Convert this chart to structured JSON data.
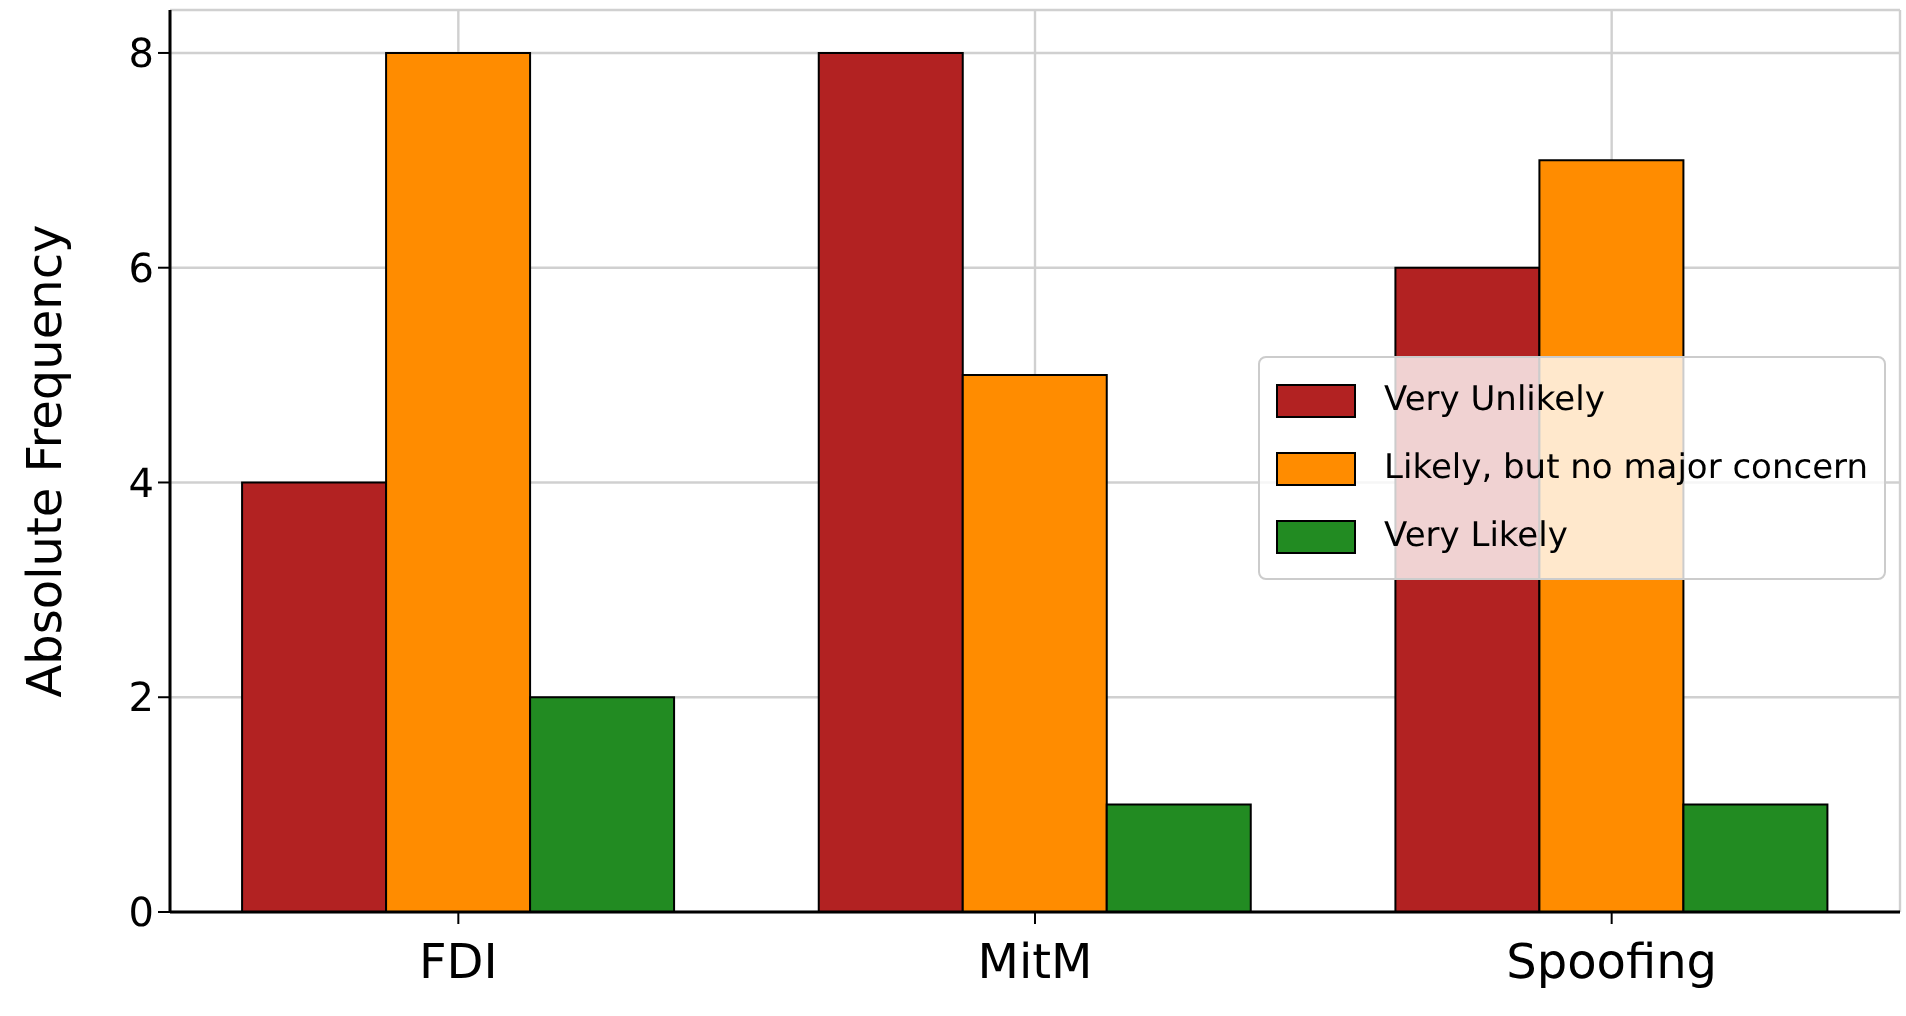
{
  "chart_data": {
    "type": "bar",
    "ylabel": "Absolute Frequency",
    "categories": [
      "FDI",
      "MitM",
      "Spoofing"
    ],
    "series": [
      {
        "name": "Very Unlikely",
        "color": "#b22222",
        "values": [
          4,
          8,
          6
        ]
      },
      {
        "name": "Likely, but no major concern",
        "color": "#ff8c00",
        "values": [
          8,
          5,
          7
        ]
      },
      {
        "name": "Very Likely",
        "color": "#228b22",
        "values": [
          2,
          1,
          1
        ]
      }
    ],
    "ylim": [
      0,
      8.4
    ],
    "yticks": [
      0,
      2,
      4,
      6,
      8
    ],
    "grid": true,
    "legend": "center right"
  }
}
